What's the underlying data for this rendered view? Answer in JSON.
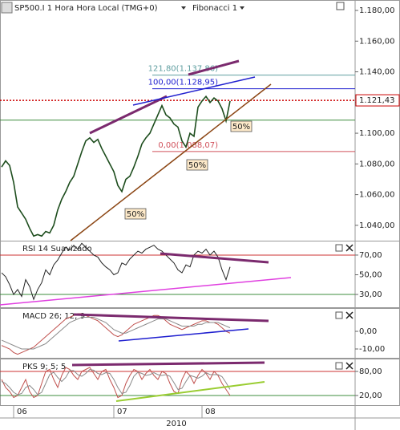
{
  "chart_data": [
    {
      "type": "line",
      "title": "SP500.I 1 Hora Hora Local (TMG+0)",
      "subtitle": "Fibonacci 1",
      "xlabel": "2010",
      "categories": [
        null,
        null,
        null,
        "06",
        null,
        null,
        null,
        null,
        null,
        null,
        null,
        null,
        null,
        null,
        null,
        null,
        null,
        null,
        null,
        null,
        null,
        null,
        null,
        null,
        null,
        null,
        null,
        null,
        "07",
        null,
        null,
        null,
        null,
        null,
        null,
        null,
        null,
        null,
        null,
        null,
        null,
        null,
        null,
        null,
        null,
        null,
        null,
        null,
        null,
        null,
        "08",
        null,
        null,
        null,
        null,
        null,
        null,
        null
      ],
      "series": [
        {
          "color": "#1d4d1d",
          "values": [
            1078,
            1082,
            1079,
            1068,
            1052,
            1048,
            1044,
            1038,
            1033,
            1034,
            1033,
            1036,
            1035,
            1040,
            1050,
            1057,
            1062,
            1068,
            1072,
            1080,
            1088,
            1095,
            1097,
            1094,
            1096,
            1090,
            1085,
            1080,
            1075,
            1066,
            1062,
            1070,
            1072,
            1078,
            1085,
            1093,
            1097,
            1100,
            1106,
            1112,
            1118,
            1112,
            1110,
            1106,
            1104,
            1095,
            1091,
            1100,
            1098,
            1117,
            1121,
            1124,
            1120,
            1123,
            1121,
            1116,
            1108,
            1121
          ]
        }
      ],
      "ylim": [
        1030,
        1185.75
      ],
      "yticks": [
        {
          "value": 1040,
          "label": "1.040,00"
        },
        {
          "value": 1060,
          "label": "1.060,00"
        },
        {
          "value": 1080,
          "label": "1.080,00"
        },
        {
          "value": 1100,
          "label": "1.100,00"
        },
        {
          "value": 1120,
          "label": "1.120,00"
        },
        {
          "value": 1140,
          "label": "1.140,00"
        },
        {
          "value": 1160,
          "label": "1.160,00"
        },
        {
          "value": 1180,
          "label": "1.180,00"
        }
      ],
      "last_price": {
        "value": 1121.43,
        "label": "1.121,43",
        "color": "#cc0000"
      },
      "fib_levels": [
        {
          "text": "121,80(1.137,86)",
          "value": 1137.86,
          "color": "#5f9ea0"
        },
        {
          "text": "100,00(1.128,95)",
          "value": 1128.95,
          "color": "#1f1fcf"
        },
        {
          "text": "0,00(1.088,07)",
          "value": 1088.07,
          "color": "#d0505a"
        }
      ],
      "hlines": [
        {
          "value": 1108.51,
          "color": "#3c8c3c"
        }
      ],
      "labels": [
        "50%",
        "50%",
        "50%"
      ]
    },
    {
      "type": "line",
      "title": "RSI 14 Suavizado",
      "series": [
        {
          "color": "#222",
          "values": [
            52,
            48,
            40,
            30,
            35,
            28,
            45,
            38,
            25,
            35,
            42,
            55,
            50,
            60,
            65,
            72,
            78,
            75,
            80,
            76,
            82,
            78,
            74,
            70,
            68,
            62,
            58,
            55,
            50,
            52,
            62,
            60,
            66,
            70,
            74,
            72,
            76,
            78,
            80,
            76,
            74,
            70,
            66,
            62,
            55,
            52,
            60,
            58,
            70,
            74,
            72,
            76,
            70,
            74,
            68,
            55,
            45,
            58
          ]
        }
      ],
      "ylim": [
        17,
        83
      ],
      "yticks": [
        {
          "value": 30,
          "label": "30,00"
        },
        {
          "value": 50,
          "label": "50,00"
        },
        {
          "value": 70,
          "label": "70,00"
        }
      ],
      "hlines": [
        {
          "value": 70,
          "color": "#cc3333"
        },
        {
          "value": 30,
          "color": "#3c8c3c"
        }
      ]
    },
    {
      "type": "line",
      "title": "MACD 26; 12; 9",
      "series": [
        {
          "color": "#c0504d",
          "values": [
            -8,
            -9,
            -10,
            -12,
            -13,
            -12,
            -11,
            -10,
            -9,
            -7,
            -5,
            -3,
            -1,
            1,
            3,
            5,
            7,
            8,
            9,
            10,
            10,
            9,
            8,
            7,
            6,
            4,
            2,
            0,
            -2,
            -3,
            -2,
            0,
            2,
            4,
            5,
            6,
            7,
            8,
            9,
            9,
            8,
            6,
            4,
            3,
            2,
            1,
            2,
            3,
            4,
            5,
            6,
            6,
            5,
            5,
            4,
            2,
            0,
            -1
          ]
        },
        {
          "color": "#8a8a8a",
          "values": [
            -5,
            -6,
            -7,
            -8,
            -9,
            -10,
            -10,
            -10,
            -10,
            -9,
            -8,
            -7,
            -5,
            -3,
            -1,
            1,
            3,
            5,
            6,
            7,
            8,
            8,
            8,
            8,
            7,
            6,
            5,
            3,
            1,
            0,
            -1,
            -1,
            0,
            1,
            2,
            3,
            4,
            5,
            6,
            7,
            7,
            7,
            6,
            5,
            4,
            3,
            3,
            3,
            3,
            4,
            4,
            5,
            5,
            5,
            5,
            4,
            3,
            2
          ]
        }
      ],
      "ylim": [
        -15,
        12.3
      ],
      "yticks": [
        {
          "value": -10,
          "label": "-10,00"
        },
        {
          "value": 0,
          "label": "0,00"
        }
      ],
      "hlines": []
    },
    {
      "type": "line",
      "title": "PKS 9; 5; 5",
      "series": [
        {
          "color": "#c0504d",
          "values": [
            60,
            40,
            30,
            15,
            20,
            40,
            60,
            30,
            15,
            20,
            50,
            80,
            85,
            60,
            40,
            70,
            90,
            85,
            70,
            60,
            80,
            85,
            90,
            75,
            60,
            80,
            85,
            60,
            40,
            15,
            20,
            50,
            70,
            85,
            80,
            60,
            75,
            85,
            70,
            60,
            80,
            75,
            50,
            30,
            25,
            60,
            80,
            70,
            50,
            70,
            85,
            75,
            60,
            80,
            70,
            50,
            35,
            20
          ]
        },
        {
          "color": "#8a8a8a",
          "values": [
            55,
            50,
            40,
            28,
            22,
            25,
            40,
            45,
            35,
            22,
            28,
            50,
            72,
            78,
            65,
            55,
            65,
            82,
            82,
            72,
            68,
            75,
            85,
            83,
            75,
            72,
            77,
            75,
            60,
            40,
            25,
            28,
            45,
            68,
            78,
            75,
            70,
            72,
            77,
            72,
            70,
            72,
            68,
            52,
            35,
            38,
            55,
            70,
            67,
            63,
            68,
            77,
            72,
            72,
            72,
            67,
            52,
            35
          ]
        }
      ],
      "ylim": [
        -4,
        108
      ],
      "yticks": [
        {
          "value": 20,
          "label": "20,00"
        },
        {
          "value": 80,
          "label": "80,00"
        }
      ],
      "hlines": [
        {
          "value": 80,
          "color": "#cc3333"
        },
        {
          "value": 20,
          "color": "#3c8c3c"
        }
      ]
    }
  ]
}
